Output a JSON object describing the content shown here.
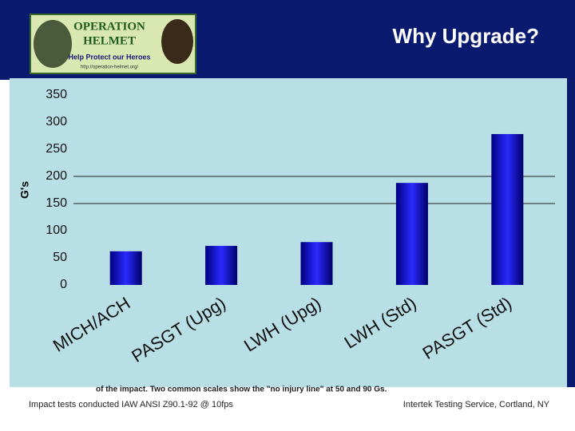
{
  "header": {
    "title": "Why Upgrade?",
    "logo": {
      "line1": "OPERATION",
      "line2": "HELMET",
      "tagline": "Help Protect our Heroes",
      "url": "http://operation-helmet.org/"
    }
  },
  "chart_data": {
    "type": "bar",
    "y_label": "G's",
    "categories": [
      "MICH/ACH",
      "PASGT (Upg)",
      "LWH (Upg)",
      "LWH (Std)",
      "PASGT (Std)"
    ],
    "values": [
      62,
      72,
      79,
      188,
      278
    ],
    "color": "#1818d8",
    "ylim": [
      0,
      350
    ],
    "yticks": [
      0,
      50,
      100,
      150,
      200,
      250,
      300,
      350
    ],
    "reference_lines": [
      150,
      200
    ]
  },
  "footer": {
    "caption": "of the impact.  Two common scales show the \"no injury line\" at 50 and 90 Gs.",
    "left": "Impact tests conducted IAW ANSI Z90.1-92 @ 10fps",
    "right": "Intertek Testing Service, Cortland, NY"
  }
}
